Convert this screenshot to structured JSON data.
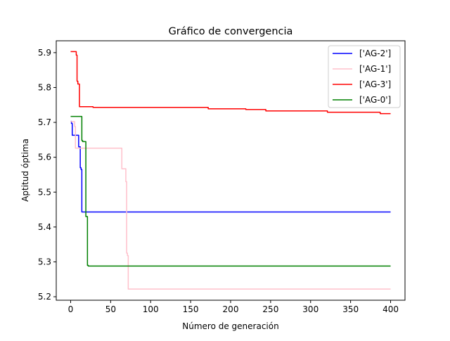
{
  "chart_data": {
    "type": "line",
    "title": "Gráfico de convergencia",
    "xlabel": "Número de generación",
    "ylabel": "Aptitud óptima",
    "xlim": [
      -18,
      418
    ],
    "ylim": [
      5.19,
      5.934
    ],
    "xticks": [
      0,
      50,
      100,
      150,
      200,
      250,
      300,
      350,
      400
    ],
    "xtick_labels": [
      "0",
      "50",
      "100",
      "150",
      "200",
      "250",
      "300",
      "350",
      "400"
    ],
    "yticks": [
      5.2,
      5.3,
      5.4,
      5.5,
      5.6,
      5.7,
      5.8,
      5.9
    ],
    "ytick_labels": [
      "5.2",
      "5.3",
      "5.4",
      "5.5",
      "5.6",
      "5.7",
      "5.8",
      "5.9"
    ],
    "grid": false,
    "legend_position": "top-right",
    "series": [
      {
        "name": "['AG-2']",
        "color": "#0000ff",
        "step": true,
        "points": [
          [
            0,
            5.703
          ],
          [
            1,
            5.697
          ],
          [
            2,
            5.663
          ],
          [
            9,
            5.663
          ],
          [
            10,
            5.63
          ],
          [
            11,
            5.63
          ],
          [
            12,
            5.57
          ],
          [
            13,
            5.565
          ],
          [
            14,
            5.443
          ],
          [
            400,
            5.443
          ]
        ]
      },
      {
        "name": "['AG-1']",
        "color": "#ffc0cb",
        "step": true,
        "points": [
          [
            0,
            5.702
          ],
          [
            5,
            5.688
          ],
          [
            6,
            5.626
          ],
          [
            63,
            5.626
          ],
          [
            64,
            5.567
          ],
          [
            68,
            5.567
          ],
          [
            69,
            5.53
          ],
          [
            70,
            5.325
          ],
          [
            71,
            5.318
          ],
          [
            72,
            5.222
          ],
          [
            400,
            5.222
          ]
        ]
      },
      {
        "name": "['AG-3']",
        "color": "#ff0000",
        "step": true,
        "points": [
          [
            0,
            5.903
          ],
          [
            6,
            5.903
          ],
          [
            7,
            5.893
          ],
          [
            8,
            5.818
          ],
          [
            9,
            5.81
          ],
          [
            11,
            5.745
          ],
          [
            27,
            5.745
          ],
          [
            28,
            5.743
          ],
          [
            171,
            5.743
          ],
          [
            172,
            5.739
          ],
          [
            218,
            5.739
          ],
          [
            219,
            5.737
          ],
          [
            243,
            5.737
          ],
          [
            244,
            5.733
          ],
          [
            320,
            5.733
          ],
          [
            321,
            5.729
          ],
          [
            386,
            5.729
          ],
          [
            387,
            5.725
          ],
          [
            400,
            5.725
          ]
        ]
      },
      {
        "name": "['AG-0']",
        "color": "#008000",
        "step": true,
        "points": [
          [
            0,
            5.717
          ],
          [
            13,
            5.717
          ],
          [
            14,
            5.648
          ],
          [
            15,
            5.645
          ],
          [
            18,
            5.645
          ],
          [
            19,
            5.43
          ],
          [
            20,
            5.43
          ],
          [
            21,
            5.29
          ],
          [
            22,
            5.288
          ],
          [
            400,
            5.288
          ]
        ]
      }
    ]
  }
}
